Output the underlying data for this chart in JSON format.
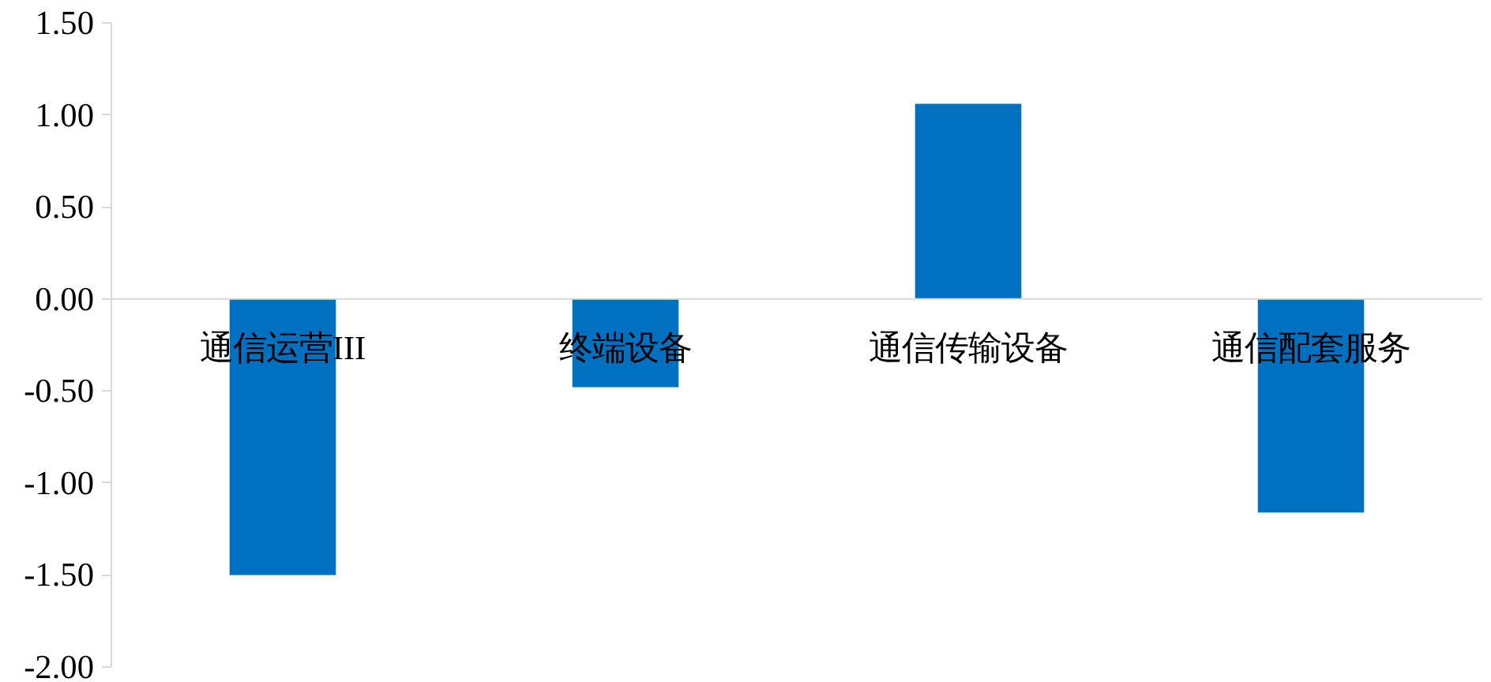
{
  "chart_data": {
    "type": "bar",
    "categories": [
      "通信运营III",
      "终端设备",
      "通信传输设备",
      "通信配套服务"
    ],
    "values": [
      -1.5,
      -0.48,
      1.06,
      -1.16
    ],
    "color": "#0070c0",
    "ylim": [
      -2,
      1.5
    ],
    "yticks": [
      {
        "value": -2,
        "label": "-2.00"
      },
      {
        "value": -1.5,
        "label": "-1.50"
      },
      {
        "value": -1,
        "label": "-1.00"
      },
      {
        "value": -0.5,
        "label": "-0.50"
      },
      {
        "value": 0,
        "label": "0.00"
      },
      {
        "value": 0.5,
        "label": "0.50"
      },
      {
        "value": 1,
        "label": "1.00"
      },
      {
        "value": 1.5,
        "label": "1.50"
      }
    ]
  }
}
